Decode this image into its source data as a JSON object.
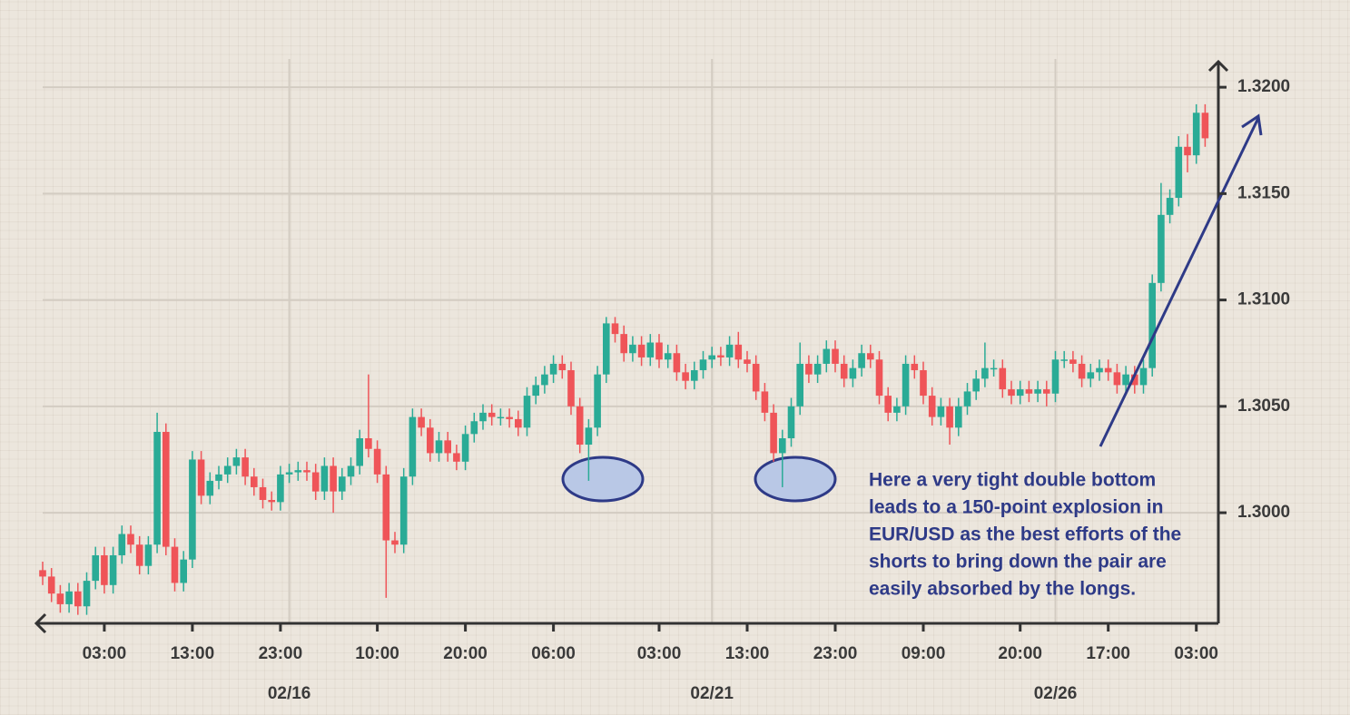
{
  "chart_data": {
    "type": "candlestick",
    "categories": [
      null,
      null,
      null,
      null,
      null,
      null,
      null,
      "03:00",
      null,
      null,
      null,
      null,
      null,
      null,
      null,
      null,
      null,
      "13:00",
      null,
      null,
      null,
      null,
      null,
      null,
      null,
      null,
      null,
      "23:00",
      null,
      null,
      null,
      null,
      null,
      null,
      null,
      null,
      null,
      null,
      "10:00",
      null,
      null,
      null,
      null,
      null,
      null,
      null,
      null,
      null,
      "20:00",
      null,
      null,
      null,
      null,
      null,
      null,
      null,
      null,
      null,
      "06:00",
      null,
      null,
      null,
      null,
      null,
      null,
      null,
      null,
      null,
      null,
      null,
      "03:00",
      null,
      null,
      null,
      null,
      null,
      null,
      null,
      null,
      null,
      "13:00",
      null,
      null,
      null,
      null,
      null,
      null,
      null,
      null,
      null,
      "23:00",
      null,
      null,
      null,
      null,
      null,
      null,
      null,
      null,
      null,
      "09:00",
      null,
      null,
      null,
      null,
      null,
      null,
      null,
      null,
      null,
      null,
      "20:00",
      null,
      null,
      null,
      null,
      null,
      null,
      null,
      null,
      null,
      "17:00",
      null,
      null,
      null,
      null,
      null,
      null,
      null,
      null,
      null,
      "03:00",
      null
    ],
    "dates": [
      null,
      null,
      null,
      null,
      null,
      null,
      null,
      null,
      null,
      null,
      null,
      null,
      null,
      null,
      null,
      null,
      null,
      null,
      null,
      null,
      null,
      null,
      null,
      null,
      null,
      null,
      null,
      null,
      "02/16",
      null,
      null,
      null,
      null,
      null,
      null,
      null,
      null,
      null,
      null,
      null,
      null,
      null,
      null,
      null,
      null,
      null,
      null,
      null,
      null,
      null,
      null,
      null,
      null,
      null,
      null,
      null,
      null,
      null,
      null,
      null,
      null,
      null,
      null,
      null,
      null,
      null,
      null,
      null,
      null,
      null,
      null,
      null,
      null,
      null,
      null,
      null,
      "02/21",
      null,
      null,
      null,
      null,
      null,
      null,
      null,
      null,
      null,
      null,
      null,
      null,
      null,
      null,
      null,
      null,
      null,
      null,
      null,
      null,
      null,
      null,
      null,
      null,
      null,
      null,
      null,
      null,
      null,
      null,
      null,
      null,
      null,
      null,
      null,
      null,
      null,
      null,
      "02/26",
      null,
      null,
      null,
      null,
      null,
      null,
      null,
      null,
      null,
      null,
      null,
      null,
      null,
      null,
      null,
      null,
      null
    ],
    "open": [
      1.2973,
      1.297,
      1.2962,
      1.2957,
      1.2963,
      1.2956,
      1.2968,
      1.298,
      1.2966,
      1.298,
      1.299,
      1.2985,
      1.2975,
      1.2985,
      1.3038,
      1.2984,
      1.2967,
      1.2978,
      1.3025,
      1.3008,
      1.3015,
      1.3018,
      1.3022,
      1.3026,
      1.3017,
      1.3012,
      1.3006,
      1.3005,
      1.3018,
      1.3019,
      1.302,
      1.3019,
      1.301,
      1.3022,
      1.301,
      1.3017,
      1.3022,
      1.3035,
      1.303,
      1.3018,
      1.2987,
      1.2985,
      1.3017,
      1.3045,
      1.304,
      1.3028,
      1.3034,
      1.3028,
      1.3024,
      1.3037,
      1.3043,
      1.3047,
      1.3045,
      1.3045,
      1.3044,
      1.304,
      1.3055,
      1.306,
      1.3065,
      1.307,
      1.3067,
      1.305,
      1.3032,
      1.304,
      1.3065,
      1.3089,
      1.3084,
      1.3075,
      1.3079,
      1.3073,
      1.308,
      1.3072,
      1.3075,
      1.3066,
      1.3062,
      1.3067,
      1.3072,
      1.3074,
      1.3073,
      1.3079,
      1.3072,
      1.307,
      1.3057,
      1.3047,
      1.3028,
      1.3035,
      1.305,
      1.307,
      1.3065,
      1.307,
      1.3077,
      1.307,
      1.3063,
      1.3068,
      1.3075,
      1.3072,
      1.3055,
      1.3047,
      1.305,
      1.307,
      1.3067,
      1.3055,
      1.3045,
      1.305,
      1.304,
      1.305,
      1.3057,
      1.3063,
      1.3068,
      1.3068,
      1.3058,
      1.3055,
      1.3058,
      1.3056,
      1.3058,
      1.3056,
      1.3072,
      1.3072,
      1.307,
      1.3063,
      1.3066,
      1.3068,
      1.3066,
      1.306,
      1.3065,
      1.306,
      1.3068,
      1.3108,
      1.314,
      1.3148,
      1.3172,
      1.3168,
      1.3188
    ],
    "high": [
      1.2977,
      1.2974,
      1.2966,
      1.2967,
      1.2967,
      1.2972,
      1.2984,
      1.2984,
      1.2984,
      1.2994,
      1.2994,
      1.2989,
      1.2989,
      1.3047,
      1.3042,
      1.2988,
      1.2982,
      1.3029,
      1.3029,
      1.3019,
      1.3022,
      1.3026,
      1.303,
      1.303,
      1.3021,
      1.3016,
      1.301,
      1.3022,
      1.3023,
      1.3024,
      1.3024,
      1.3023,
      1.3026,
      1.3026,
      1.3021,
      1.3026,
      1.3039,
      1.3065,
      1.3034,
      1.3022,
      1.2991,
      1.3021,
      1.3049,
      1.3049,
      1.3044,
      1.3038,
      1.3038,
      1.3032,
      1.3041,
      1.3047,
      1.3051,
      1.3051,
      1.3049,
      1.3049,
      1.3048,
      1.3059,
      1.3064,
      1.3069,
      1.3074,
      1.3074,
      1.3071,
      1.3054,
      1.3044,
      1.3069,
      1.3092,
      1.3092,
      1.3088,
      1.3083,
      1.3083,
      1.3084,
      1.3084,
      1.3079,
      1.3079,
      1.307,
      1.3071,
      1.3076,
      1.3078,
      1.3078,
      1.3083,
      1.3085,
      1.3076,
      1.3074,
      1.3061,
      1.3051,
      1.3039,
      1.3054,
      1.308,
      1.3074,
      1.3074,
      1.3081,
      1.3081,
      1.3074,
      1.3072,
      1.3079,
      1.3079,
      1.3076,
      1.3059,
      1.3054,
      1.3074,
      1.3074,
      1.3071,
      1.3059,
      1.3054,
      1.3054,
      1.3054,
      1.3061,
      1.3067,
      1.308,
      1.3072,
      1.3072,
      1.3062,
      1.3062,
      1.3062,
      1.3062,
      1.3062,
      1.3076,
      1.3076,
      1.3076,
      1.3074,
      1.307,
      1.3072,
      1.3072,
      1.307,
      1.3069,
      1.3069,
      1.3072,
      1.3112,
      1.3155,
      1.3152,
      1.3177,
      1.3178,
      1.3192,
      1.3192
    ],
    "low": [
      1.2966,
      1.2958,
      1.2953,
      1.2953,
      1.2952,
      1.2952,
      1.2964,
      1.2962,
      1.2962,
      1.2976,
      1.2981,
      1.2971,
      1.2971,
      1.2981,
      1.298,
      1.2963,
      1.2963,
      1.2974,
      1.3004,
      1.3004,
      1.3011,
      1.3014,
      1.3018,
      1.3013,
      1.3008,
      1.3002,
      1.3001,
      1.3001,
      1.3014,
      1.3015,
      1.3015,
      1.3006,
      1.3006,
      1.3,
      1.3006,
      1.3013,
      1.3018,
      1.3026,
      1.3014,
      1.296,
      1.2981,
      1.2981,
      1.3013,
      1.3036,
      1.3024,
      1.3024,
      1.3024,
      1.302,
      1.302,
      1.3033,
      1.3039,
      1.3041,
      1.3041,
      1.304,
      1.3036,
      1.3036,
      1.3051,
      1.3056,
      1.3061,
      1.3063,
      1.3046,
      1.3028,
      1.3015,
      1.3036,
      1.3061,
      1.308,
      1.3071,
      1.3071,
      1.3069,
      1.3069,
      1.3068,
      1.3068,
      1.3062,
      1.3058,
      1.3058,
      1.3063,
      1.3068,
      1.3069,
      1.3069,
      1.3068,
      1.3066,
      1.3053,
      1.3043,
      1.3024,
      1.3012,
      1.3031,
      1.3046,
      1.3061,
      1.3061,
      1.3066,
      1.3066,
      1.3059,
      1.3059,
      1.3064,
      1.3068,
      1.3051,
      1.3043,
      1.3043,
      1.3046,
      1.3063,
      1.3051,
      1.3041,
      1.3041,
      1.3032,
      1.3036,
      1.3046,
      1.3053,
      1.3059,
      1.3064,
      1.3054,
      1.3051,
      1.3051,
      1.3052,
      1.3052,
      1.305,
      1.3052,
      1.3068,
      1.3066,
      1.3059,
      1.3059,
      1.3062,
      1.3062,
      1.3056,
      1.3056,
      1.3056,
      1.3056,
      1.3064,
      1.3104,
      1.3136,
      1.3144,
      1.316,
      1.3164,
      1.3172
    ],
    "close": [
      1.297,
      1.2962,
      1.2957,
      1.2963,
      1.2956,
      1.2968,
      1.298,
      1.2966,
      1.298,
      1.299,
      1.2985,
      1.2975,
      1.2985,
      1.3038,
      1.2984,
      1.2967,
      1.2978,
      1.3025,
      1.3008,
      1.3015,
      1.3018,
      1.3022,
      1.3026,
      1.3017,
      1.3012,
      1.3006,
      1.3005,
      1.3018,
      1.3019,
      1.302,
      1.3019,
      1.301,
      1.3022,
      1.301,
      1.3017,
      1.3022,
      1.3035,
      1.303,
      1.3018,
      1.2987,
      1.2985,
      1.3017,
      1.3045,
      1.304,
      1.3028,
      1.3034,
      1.3028,
      1.3024,
      1.3037,
      1.3043,
      1.3047,
      1.3045,
      1.3045,
      1.3044,
      1.304,
      1.3055,
      1.306,
      1.3065,
      1.307,
      1.3067,
      1.305,
      1.3032,
      1.304,
      1.3065,
      1.3089,
      1.3084,
      1.3075,
      1.3079,
      1.3073,
      1.308,
      1.3072,
      1.3075,
      1.3066,
      1.3062,
      1.3067,
      1.3072,
      1.3074,
      1.3073,
      1.3079,
      1.3072,
      1.307,
      1.3057,
      1.3047,
      1.3028,
      1.3035,
      1.305,
      1.307,
      1.3065,
      1.307,
      1.3077,
      1.307,
      1.3063,
      1.3068,
      1.3075,
      1.3072,
      1.3055,
      1.3047,
      1.305,
      1.307,
      1.3067,
      1.3055,
      1.3045,
      1.305,
      1.304,
      1.305,
      1.3057,
      1.3063,
      1.3068,
      1.3068,
      1.3058,
      1.3055,
      1.3058,
      1.3056,
      1.3058,
      1.3056,
      1.3072,
      1.3072,
      1.307,
      1.3063,
      1.3066,
      1.3068,
      1.3066,
      1.306,
      1.3065,
      1.306,
      1.3068,
      1.3108,
      1.314,
      1.3148,
      1.3172,
      1.3168,
      1.3188,
      1.3176
    ],
    "up_color": "#2aab96",
    "down_color": "#ef5458",
    "ylim": [
      1.2948,
      1.3212
    ],
    "yticks": [
      {
        "value": 1.3,
        "label": "1.3000"
      },
      {
        "value": 1.305,
        "label": "1.3050"
      },
      {
        "value": 1.31,
        "label": "1.3100"
      },
      {
        "value": 1.315,
        "label": "1.3150"
      },
      {
        "value": 1.32,
        "label": "1.3200"
      }
    ],
    "grid": true,
    "annotation": [
      "Here a very tight double bottom",
      "leads to a 150-point explosion in",
      "EUR/USD as the best efforts of the",
      "shorts to bring down the pair are",
      "easily absorbed by the longs."
    ]
  }
}
